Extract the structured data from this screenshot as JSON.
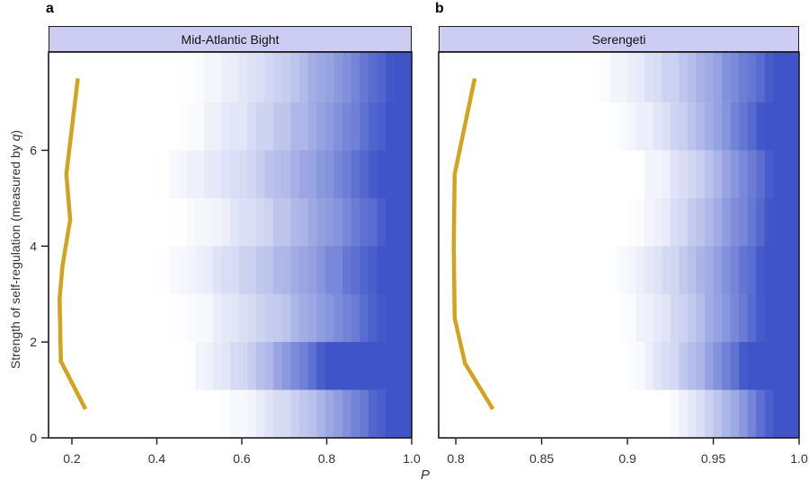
{
  "figure": {
    "panel_letters": [
      "a",
      "b"
    ]
  },
  "axes": {
    "xlabel": "P",
    "ylabel_prefix": "Strength of self-regulation (measured by ",
    "ylabel_var": "q",
    "ylabel_suffix": ")"
  },
  "colors": {
    "heat_low": "#FFFFFF",
    "heat_high": "#3E54C8",
    "line": "#D2A31D",
    "header_fill": "#CDCDF3",
    "border": "#1A1A1A",
    "tick_text": "#333333"
  },
  "chart_data": [
    {
      "type": "heatmap",
      "panel": "a",
      "title": "Mid-Atlantic Bight",
      "x_range": [
        0.145,
        1.0
      ],
      "x_tick_values": [
        0.2,
        0.4,
        0.6,
        0.8,
        1.0
      ],
      "x_tick_labels": [
        "0.2",
        "0.4",
        "0.6",
        "0.8",
        "1.0"
      ],
      "y_range": [
        0,
        8.05
      ],
      "y_tick_values": [
        0,
        2,
        4,
        6
      ],
      "y_tick_labels": [
        "0",
        "2",
        "4",
        "6"
      ],
      "n_bins": 42,
      "ramp_gamma": 1.7,
      "heat_rows": [
        {
          "q_min": 7,
          "q_max": 8.05,
          "ramp_start": 0.44,
          "ramp_end": 0.96
        },
        {
          "q_min": 6,
          "q_max": 7,
          "ramp_start": 0.42,
          "ramp_end": 0.945
        },
        {
          "q_min": 5,
          "q_max": 6,
          "ramp_start": 0.37,
          "ramp_end": 0.93
        },
        {
          "q_min": 4,
          "q_max": 5,
          "ramp_start": 0.41,
          "ramp_end": 0.95
        },
        {
          "q_min": 3,
          "q_max": 4,
          "ramp_start": 0.36,
          "ramp_end": 0.925
        },
        {
          "q_min": 2,
          "q_max": 3,
          "ramp_start": 0.42,
          "ramp_end": 0.937
        },
        {
          "q_min": 1,
          "q_max": 2,
          "ramp_start": 0.45,
          "ramp_end": 0.8
        },
        {
          "q_min": 0,
          "q_max": 1,
          "ramp_start": 0.53,
          "ramp_end": 0.94
        }
      ],
      "overlay_line": {
        "points": [
          [
            0.214,
            7.5
          ],
          [
            0.187,
            5.5
          ],
          [
            0.196,
            4.55
          ],
          [
            0.178,
            3.6
          ],
          [
            0.171,
            2.9
          ],
          [
            0.174,
            1.6
          ],
          [
            0.232,
            0.6
          ]
        ]
      }
    },
    {
      "type": "heatmap",
      "panel": "b",
      "title": "Serengeti",
      "x_range": [
        0.79,
        1.0
      ],
      "x_tick_values": [
        0.8,
        0.85,
        0.9,
        0.95,
        1.0
      ],
      "x_tick_labels": [
        "0.8",
        "0.85",
        "0.9",
        "0.95",
        "1.0"
      ],
      "y_range": [
        0,
        8.05
      ],
      "n_bins": 42,
      "ramp_gamma": 1.7,
      "heat_rows": [
        {
          "q_min": 7,
          "q_max": 8.05,
          "ramp_start": 0.875,
          "ramp_end": 0.985
        },
        {
          "q_min": 6,
          "q_max": 7,
          "ramp_start": 0.885,
          "ramp_end": 0.98
        },
        {
          "q_min": 5,
          "q_max": 6,
          "ramp_start": 0.9,
          "ramp_end": 0.985
        },
        {
          "q_min": 4,
          "q_max": 5,
          "ramp_start": 0.895,
          "ramp_end": 0.983
        },
        {
          "q_min": 3,
          "q_max": 4,
          "ramp_start": 0.885,
          "ramp_end": 0.98
        },
        {
          "q_min": 2,
          "q_max": 3,
          "ramp_start": 0.89,
          "ramp_end": 0.98
        },
        {
          "q_min": 1,
          "q_max": 2,
          "ramp_start": 0.895,
          "ramp_end": 0.97
        },
        {
          "q_min": 0,
          "q_max": 1,
          "ramp_start": 0.915,
          "ramp_end": 0.985
        }
      ],
      "overlay_line": {
        "points": [
          [
            0.811,
            7.5
          ],
          [
            0.7993,
            5.5
          ],
          [
            0.7988,
            4.0
          ],
          [
            0.7993,
            2.5
          ],
          [
            0.8054,
            1.55
          ],
          [
            0.8216,
            0.6
          ]
        ]
      }
    }
  ]
}
